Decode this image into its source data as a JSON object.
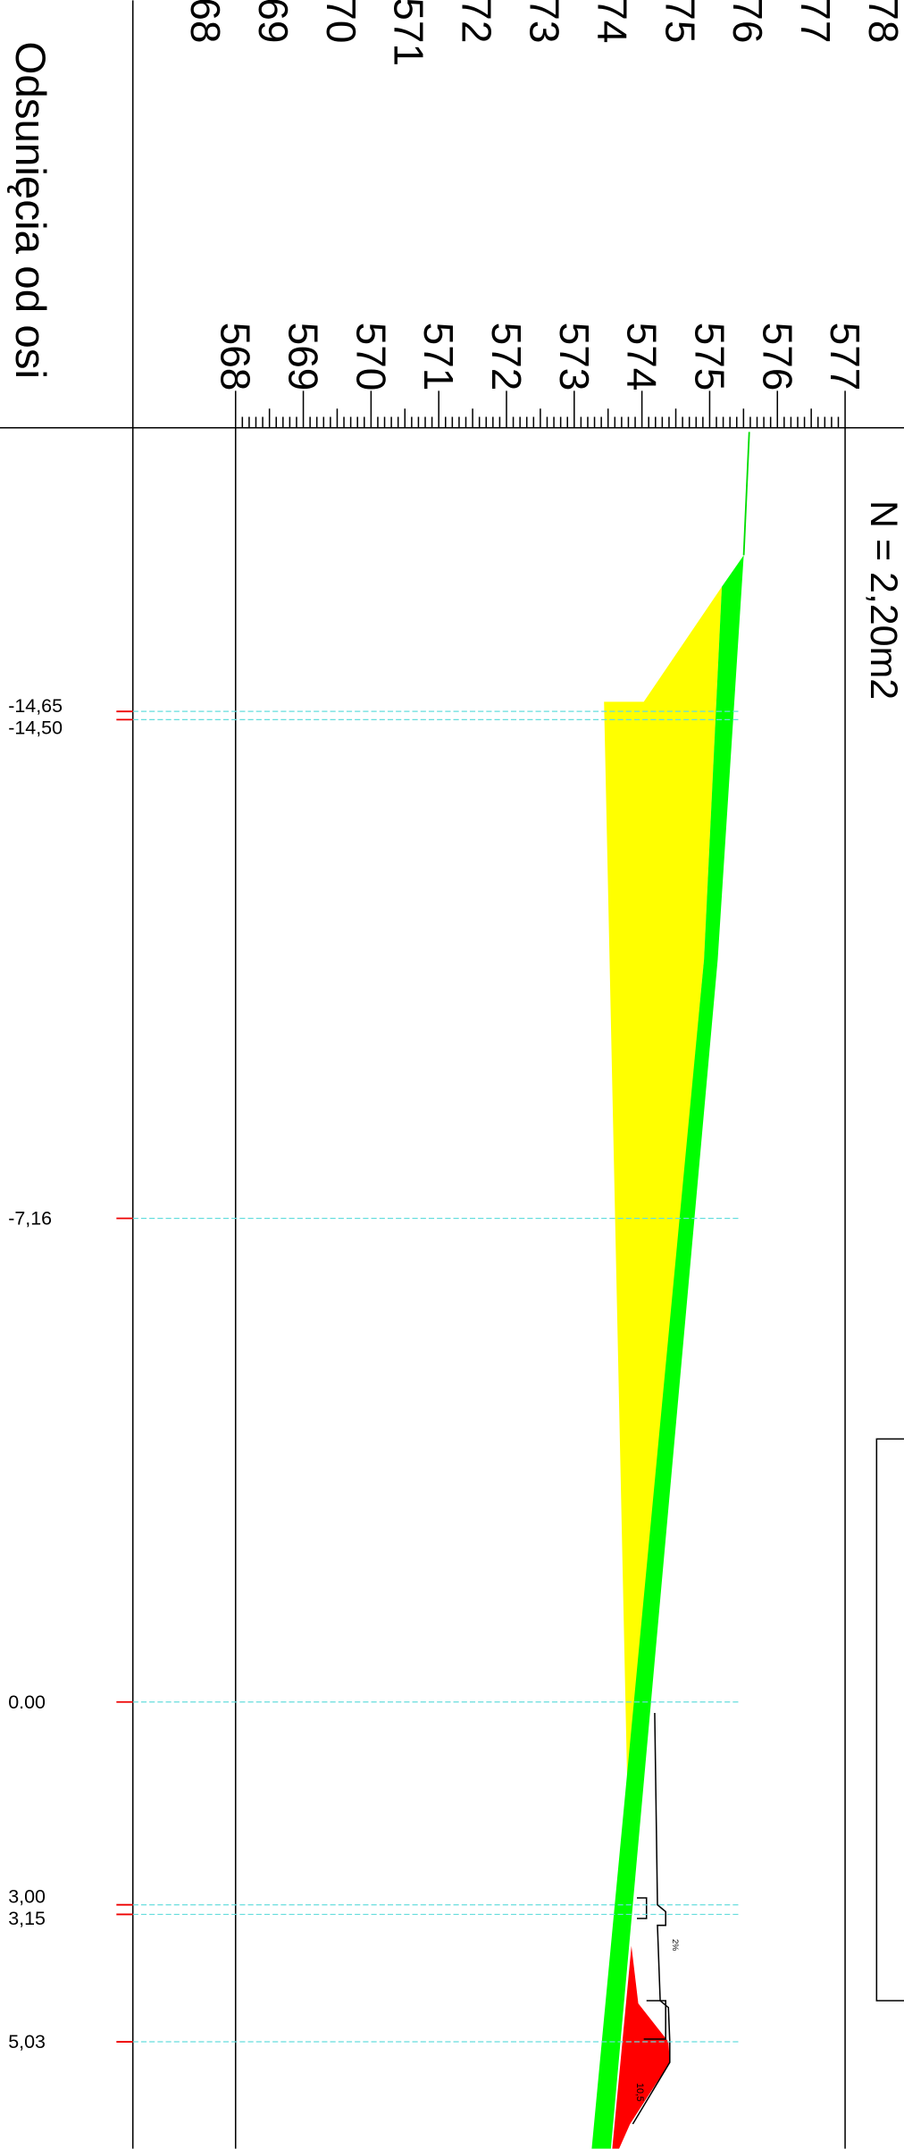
{
  "header": {
    "title": "Odsunięcia od osi",
    "area": "N =  2,20m2"
  },
  "elevations_top": [
    "68",
    "69",
    "70",
    "571",
    "72",
    "73",
    "74",
    "75",
    "76",
    "77",
    "78"
  ],
  "elevations": [
    "568",
    "569",
    "570",
    "571",
    "572",
    "573",
    "574",
    "575",
    "576",
    "577"
  ],
  "offsets": [
    "-14,65",
    "-14,50",
    "-7,16",
    "0.00",
    "3,00",
    "3,15",
    "5,03"
  ],
  "annotations": [
    "10,5"
  ]
}
